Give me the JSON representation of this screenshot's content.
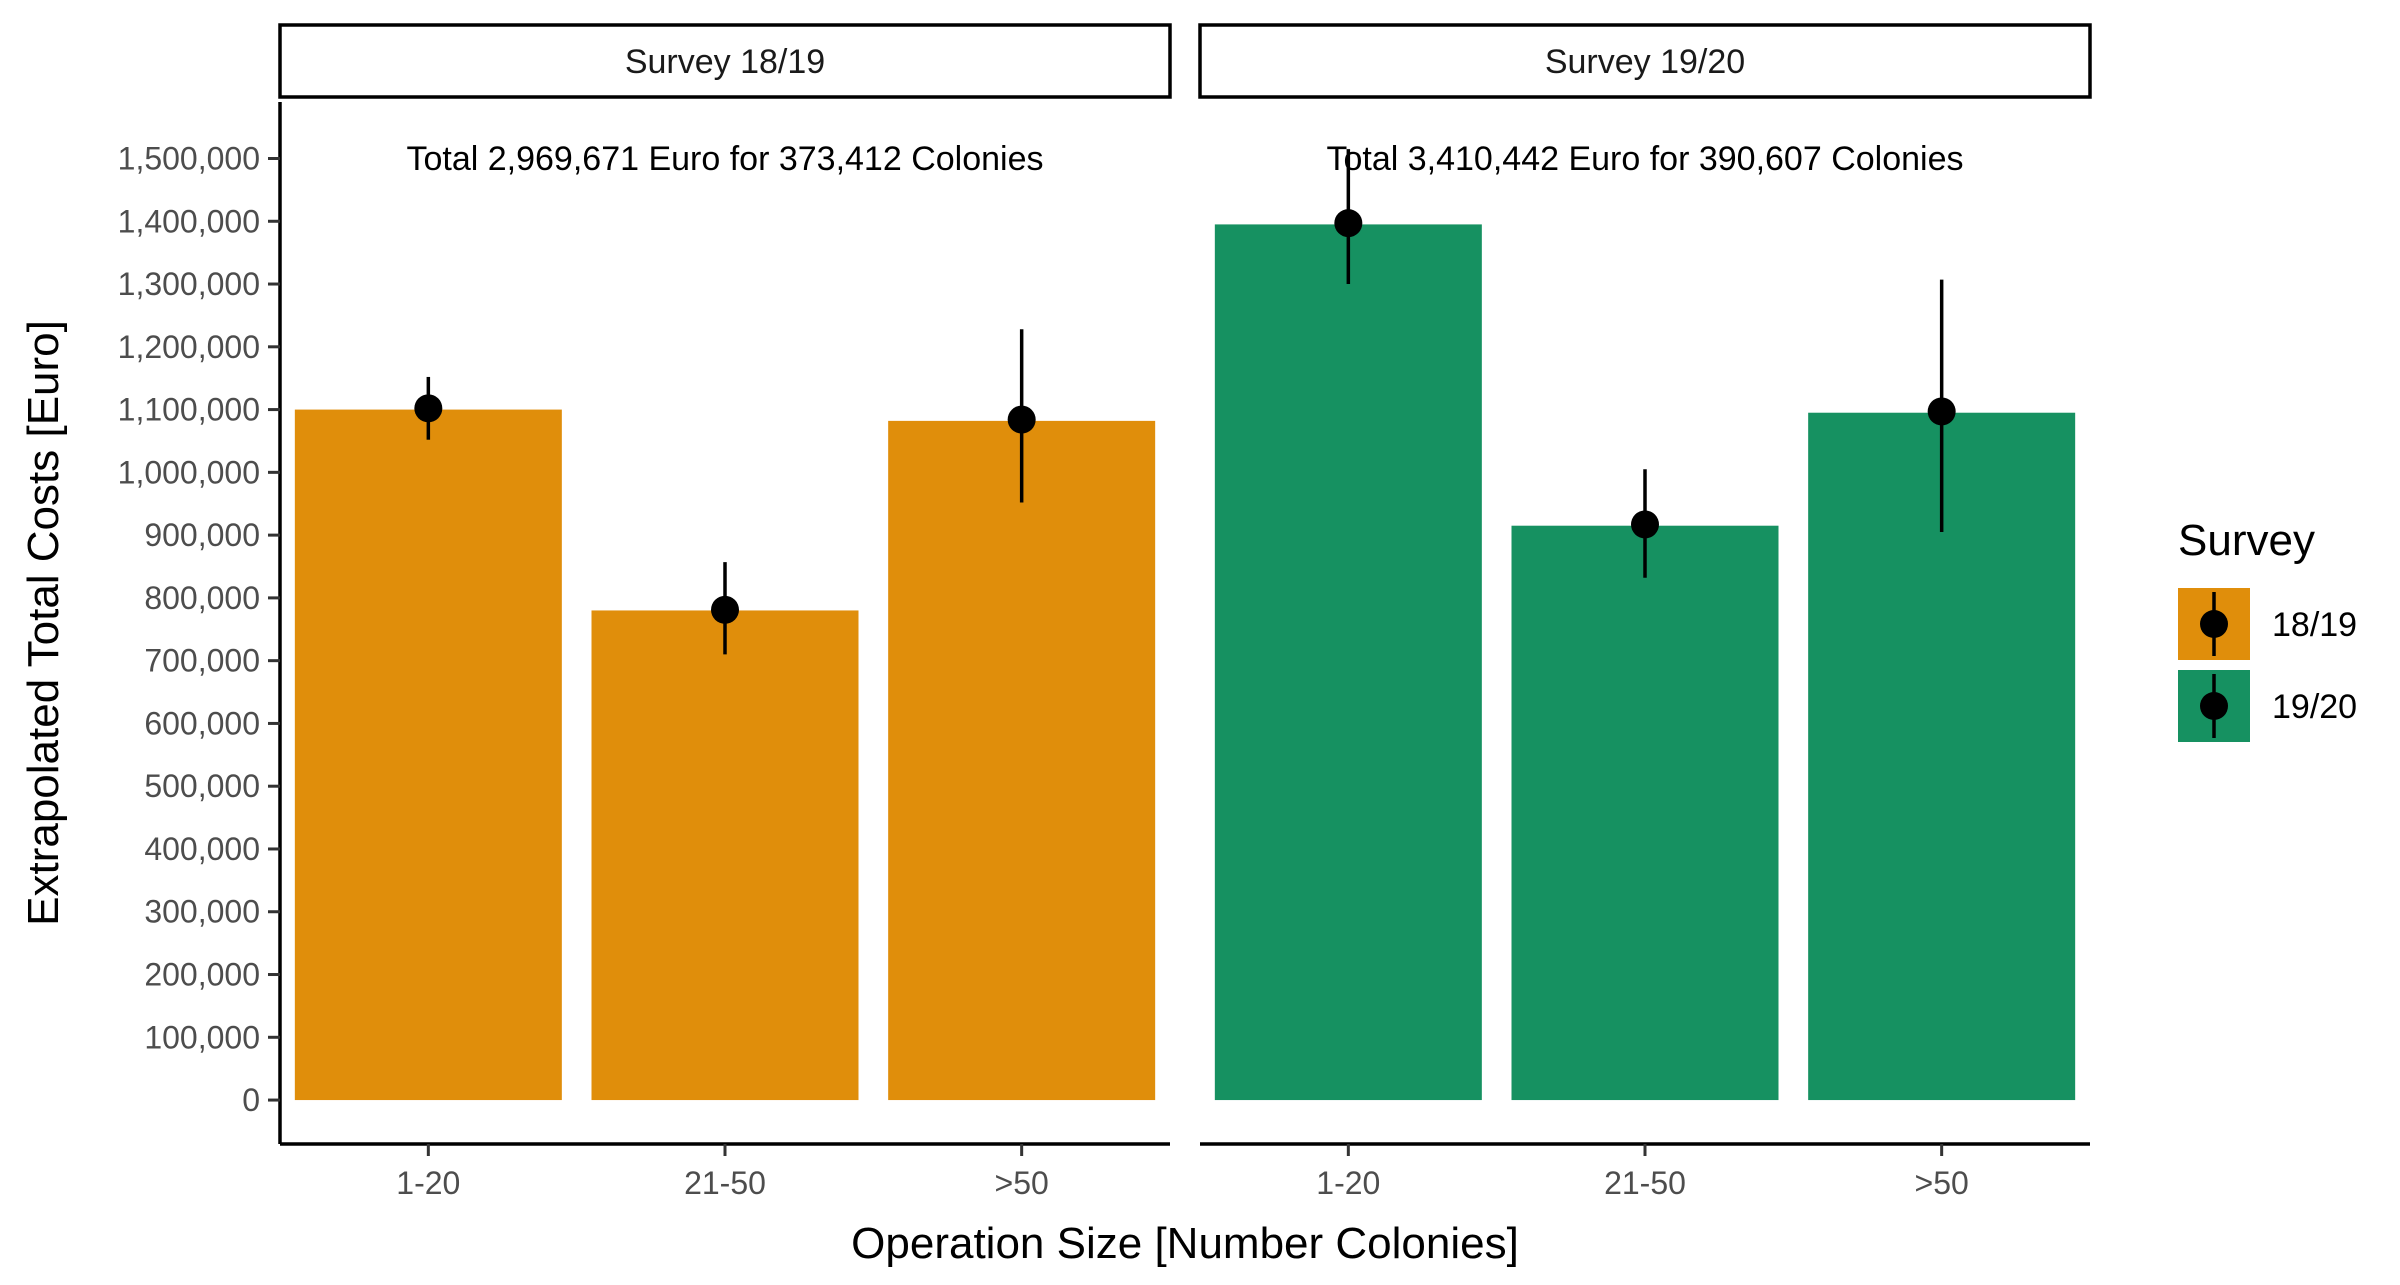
{
  "chart_data": {
    "type": "bar",
    "xlabel": "Operation Size [Number Colonies]",
    "ylabel": "Extrapolated Total Costs [Euro]",
    "ylim": [
      -70000,
      1590000
    ],
    "yticks": [
      0,
      100000,
      200000,
      300000,
      400000,
      500000,
      600000,
      700000,
      800000,
      900000,
      1000000,
      1100000,
      1200000,
      1300000,
      1400000,
      1500000
    ],
    "ytick_labels": [
      "0",
      "100,000",
      "200,000",
      "300,000",
      "400,000",
      "500,000",
      "600,000",
      "700,000",
      "800,000",
      "900,000",
      "1,000,000",
      "1,100,000",
      "1,200,000",
      "1,300,000",
      "1,400,000",
      "1,500,000"
    ],
    "categories": [
      "1-20",
      "21-50",
      ">50"
    ],
    "grid": false,
    "legend": {
      "title": "Survey",
      "placement": "right",
      "entries": [
        {
          "label": "18/19",
          "color": "#E08E0B"
        },
        {
          "label": "19/20",
          "color": "#169161"
        }
      ]
    },
    "panels": [
      {
        "strip": "Survey 18/19",
        "annotation": "Total 2,969,671 Euro for 373,412 Colonies",
        "color": "#E08E0B",
        "values": [
          1100000,
          780000,
          1082000
        ],
        "points": [
          1102000,
          781000,
          1084000
        ],
        "ci_lower": [
          1052000,
          710000,
          952000
        ],
        "ci_upper": [
          1152000,
          857000,
          1228000
        ]
      },
      {
        "strip": "Survey 19/20",
        "annotation": "Total 3,410,442 Euro for 390,607 Colonies",
        "color": "#169161",
        "values": [
          1395000,
          915000,
          1095000
        ],
        "points": [
          1397000,
          917000,
          1097000
        ],
        "ci_lower": [
          1300000,
          832000,
          905000
        ],
        "ci_upper": [
          1515000,
          1005000,
          1307000
        ]
      }
    ]
  }
}
